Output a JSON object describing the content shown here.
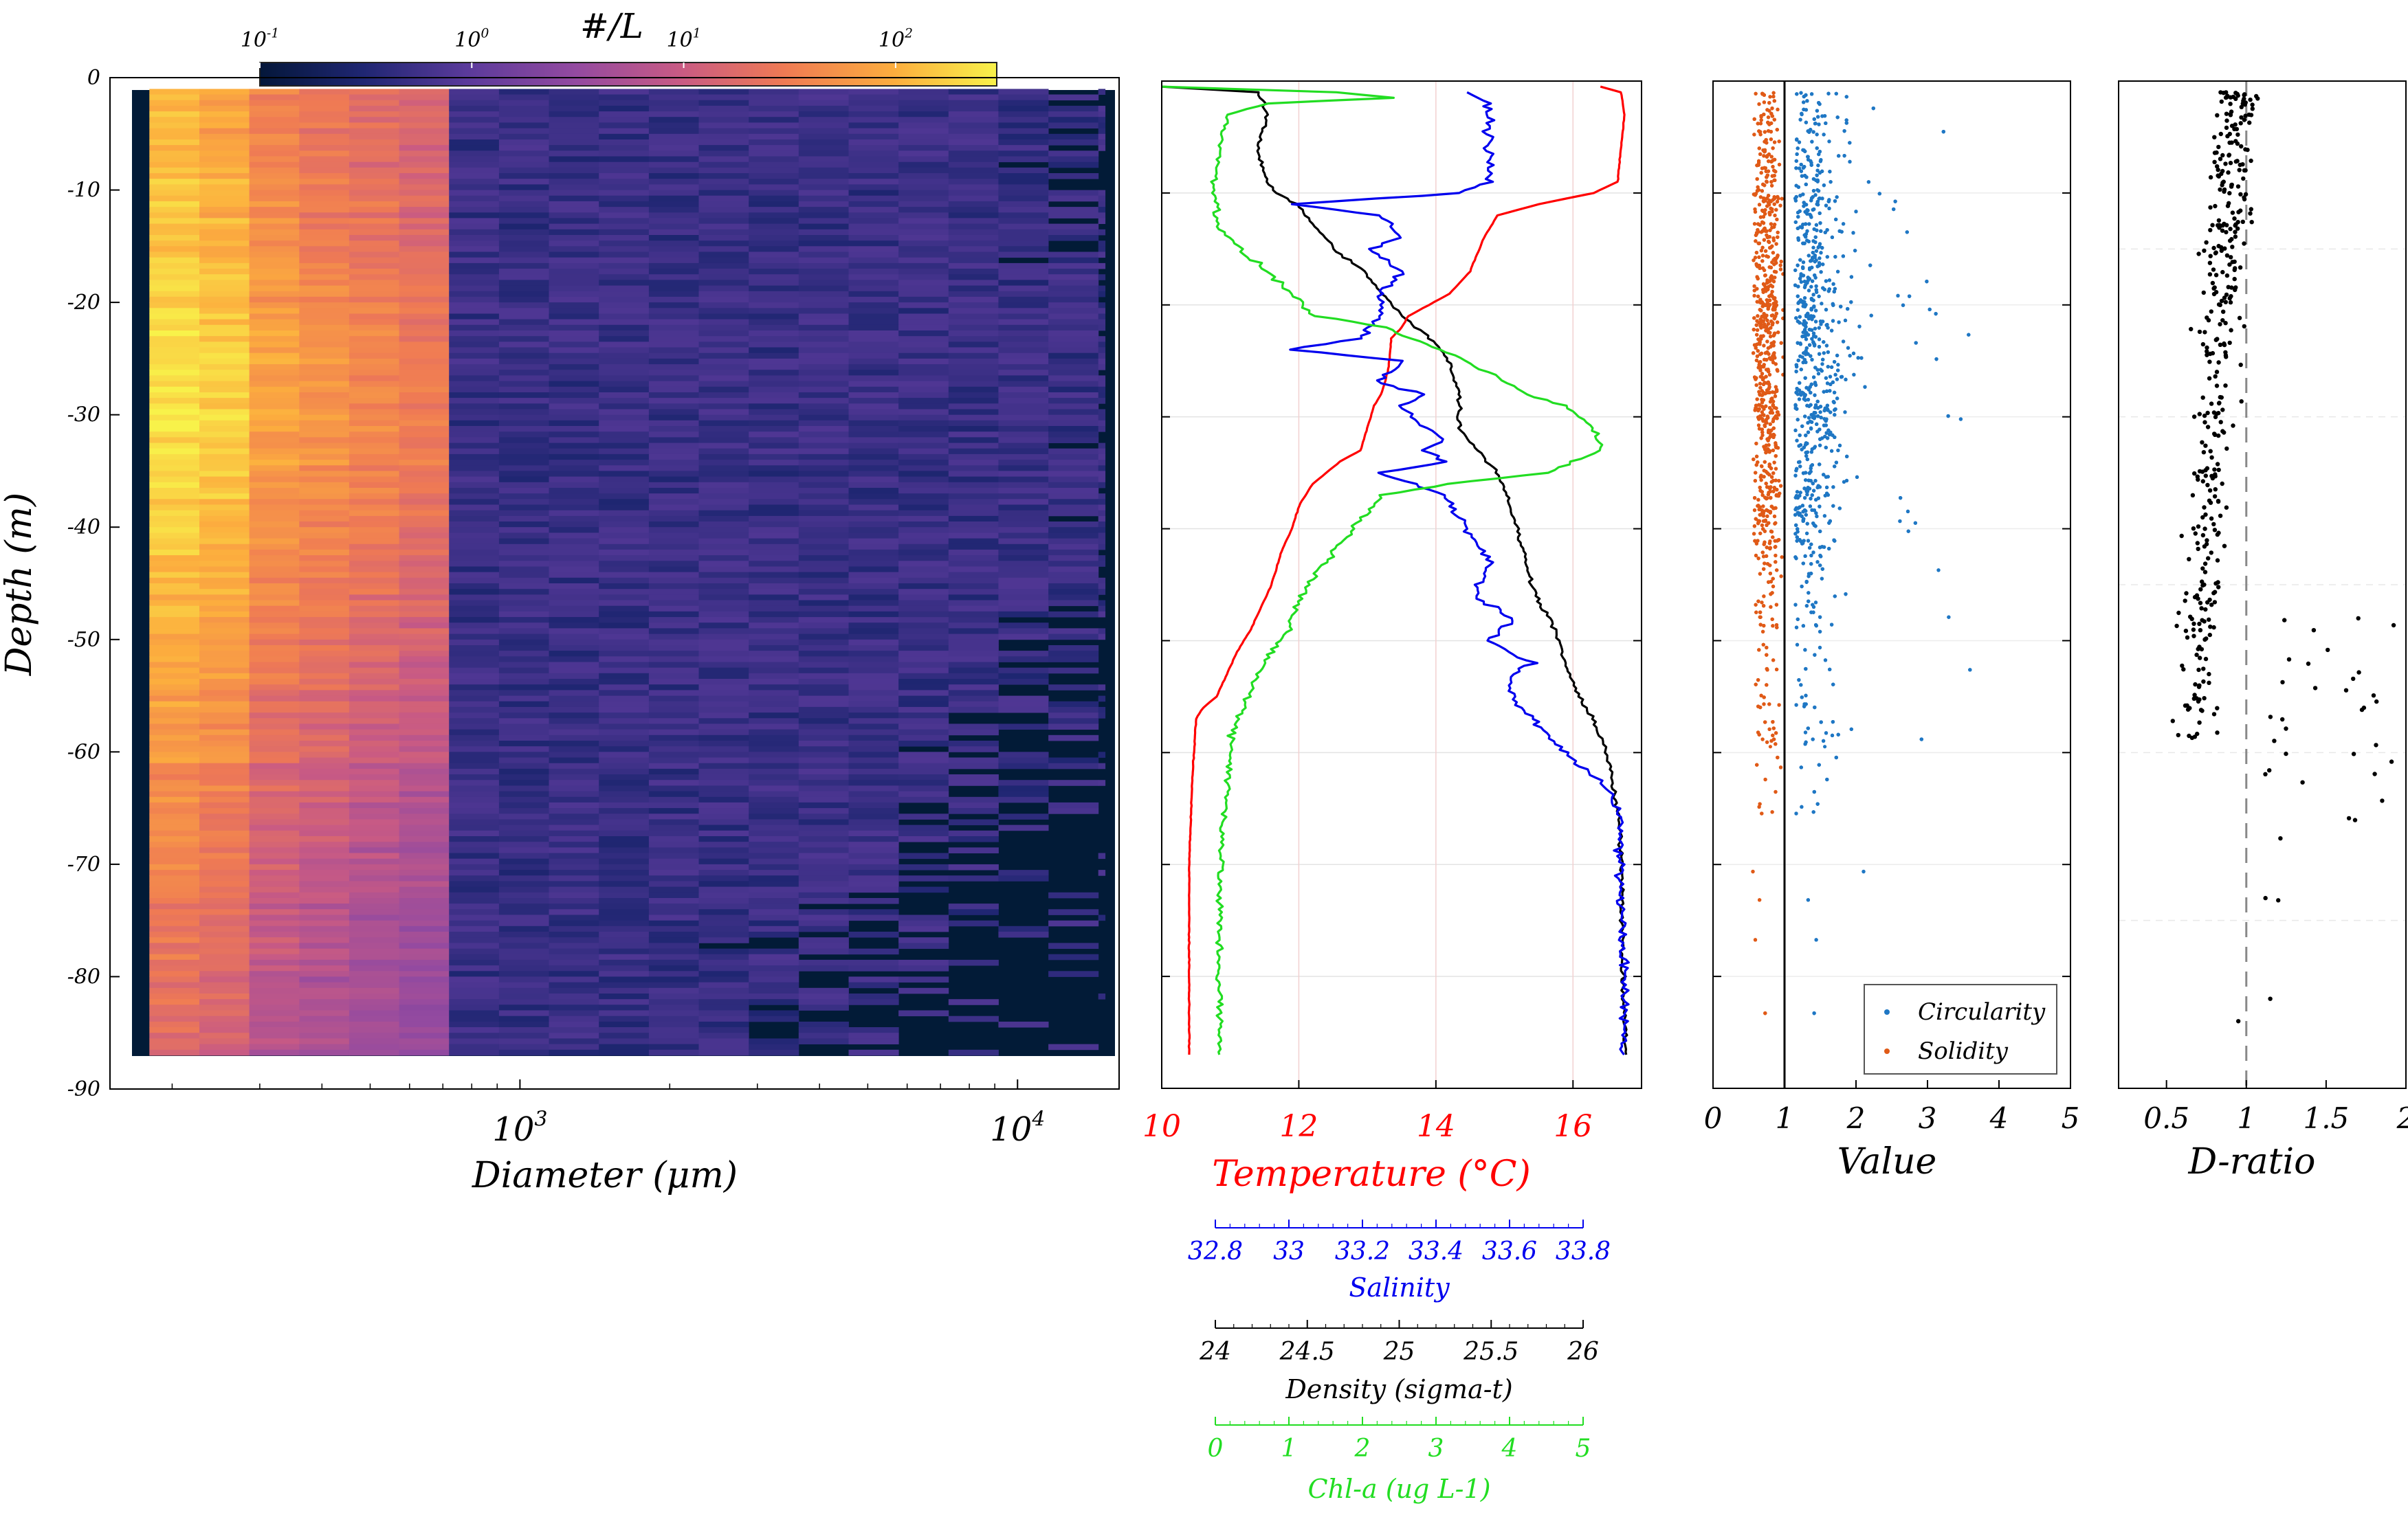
{
  "chart_data": [
    {
      "type": "heatmap",
      "colorbar": {
        "label": "#/L",
        "ticks": [
          {
            "base": "10",
            "exp": "-1"
          },
          {
            "base": "10",
            "exp": "0"
          },
          {
            "base": "10",
            "exp": "1"
          },
          {
            "base": "10",
            "exp": "2"
          }
        ],
        "range": [
          0.1,
          300
        ],
        "scale": "log",
        "colors": [
          "#04173a",
          "#1f2672",
          "#5a3a9b",
          "#944aa0",
          "#c85a84",
          "#ef7a54",
          "#fcad3e",
          "#f8f24a"
        ]
      },
      "xlabel": "Diameter (μm)",
      "ylabel": "Depth (m)",
      "xscale": "log",
      "xlim": [
        150,
        16000
      ],
      "ylim": [
        -90,
        0
      ],
      "x_ticks": [
        {
          "base": "10",
          "exp": "3"
        },
        {
          "base": "10",
          "exp": "4"
        }
      ],
      "y_ticks": [
        "0",
        "-10",
        "-20",
        "-30",
        "-40",
        "-50",
        "-60",
        "-70",
        "-80",
        "-90"
      ],
      "data_extent": {
        "x": [
          180,
          15000
        ],
        "y": [
          -87,
          -1
        ]
      },
      "background": "#021b37"
    },
    {
      "type": "line",
      "xlabel": "Temperature (°C)",
      "ylim": [
        -90,
        0
      ],
      "grid": true,
      "series": [
        {
          "name": "Temperature",
          "color": "#ff0000",
          "xlim": [
            10,
            17
          ],
          "ticks": [
            "10",
            "12",
            "14",
            "16"
          ],
          "points": [
            [
              16.4,
              -0.5
            ],
            [
              16.7,
              -1
            ],
            [
              16.75,
              -3
            ],
            [
              16.7,
              -6
            ],
            [
              16.65,
              -9
            ],
            [
              16.3,
              -10
            ],
            [
              15.5,
              -11
            ],
            [
              14.9,
              -12
            ],
            [
              14.7,
              -14
            ],
            [
              14.5,
              -17
            ],
            [
              14.2,
              -19
            ],
            [
              13.9,
              -20
            ],
            [
              13.6,
              -21
            ],
            [
              13.5,
              -22
            ],
            [
              13.35,
              -23
            ],
            [
              13.3,
              -26
            ],
            [
              13.2,
              -28
            ],
            [
              13.1,
              -29
            ],
            [
              13.0,
              -31
            ],
            [
              12.9,
              -33
            ],
            [
              12.6,
              -34
            ],
            [
              12.2,
              -36
            ],
            [
              12.0,
              -38
            ],
            [
              11.9,
              -40
            ],
            [
              11.75,
              -42
            ],
            [
              11.6,
              -45
            ],
            [
              11.45,
              -47
            ],
            [
              11.3,
              -49
            ],
            [
              11.1,
              -51
            ],
            [
              10.95,
              -53
            ],
            [
              10.8,
              -55
            ],
            [
              10.6,
              -56
            ],
            [
              10.5,
              -57
            ],
            [
              10.45,
              -62
            ],
            [
              10.4,
              -70
            ],
            [
              10.4,
              -80
            ],
            [
              10.4,
              -87
            ]
          ]
        },
        {
          "name": "Salinity",
          "color": "#0000ee",
          "xlabel": "Salinity",
          "xlim": [
            32.7,
            33.8
          ],
          "ticks": [
            "32.8",
            "33",
            "33.2",
            "33.4",
            "33.6",
            "33.8"
          ],
          "points": [
            [
              33.4,
              -1
            ],
            [
              33.45,
              -2
            ],
            [
              33.45,
              -6
            ],
            [
              33.45,
              -9
            ],
            [
              33.38,
              -10
            ],
            [
              33.2,
              -10.5
            ],
            [
              33.0,
              -11
            ],
            [
              33.2,
              -12
            ],
            [
              33.25,
              -14
            ],
            [
              33.18,
              -15
            ],
            [
              33.25,
              -17
            ],
            [
              33.2,
              -19
            ],
            [
              33.2,
              -21
            ],
            [
              33.15,
              -23
            ],
            [
              33.0,
              -24
            ],
            [
              33.25,
              -25
            ],
            [
              33.2,
              -27
            ],
            [
              33.3,
              -28
            ],
            [
              33.25,
              -29
            ],
            [
              33.3,
              -31
            ],
            [
              33.35,
              -32
            ],
            [
              33.3,
              -33
            ],
            [
              33.35,
              -34
            ],
            [
              33.2,
              -35
            ],
            [
              33.35,
              -37
            ],
            [
              33.4,
              -40
            ],
            [
              33.45,
              -43
            ],
            [
              33.42,
              -46
            ],
            [
              33.5,
              -48
            ],
            [
              33.45,
              -50
            ],
            [
              33.55,
              -52
            ],
            [
              33.5,
              -53
            ],
            [
              33.5,
              -55
            ],
            [
              33.55,
              -57
            ],
            [
              33.6,
              -59
            ],
            [
              33.65,
              -61
            ],
            [
              33.72,
              -63
            ],
            [
              33.75,
              -65
            ],
            [
              33.75,
              -70
            ],
            [
              33.76,
              -80
            ],
            [
              33.76,
              -87
            ]
          ]
        },
        {
          "name": "Density",
          "color": "#000000",
          "xlabel": "Density (sigma-t)",
          "xlim": [
            23.5,
            26
          ],
          "ticks": [
            "24",
            "24.5",
            "25",
            "25.5",
            "26"
          ],
          "points": [
            [
              23.5,
              -0.5
            ],
            [
              24.0,
              -1
            ],
            [
              24.05,
              -3
            ],
            [
              24.0,
              -6
            ],
            [
              24.05,
              -9
            ],
            [
              24.1,
              -10
            ],
            [
              24.2,
              -11
            ],
            [
              24.3,
              -13
            ],
            [
              24.4,
              -15
            ],
            [
              24.55,
              -17
            ],
            [
              24.65,
              -19
            ],
            [
              24.75,
              -21
            ],
            [
              24.9,
              -23
            ],
            [
              25.0,
              -25
            ],
            [
              25.05,
              -28
            ],
            [
              25.05,
              -31
            ],
            [
              25.15,
              -33
            ],
            [
              25.25,
              -35
            ],
            [
              25.3,
              -37
            ],
            [
              25.35,
              -40
            ],
            [
              25.4,
              -43
            ],
            [
              25.45,
              -46
            ],
            [
              25.55,
              -49
            ],
            [
              25.6,
              -52
            ],
            [
              25.65,
              -54
            ],
            [
              25.7,
              -56
            ],
            [
              25.75,
              -57
            ],
            [
              25.82,
              -60
            ],
            [
              25.85,
              -63
            ],
            [
              25.88,
              -66
            ],
            [
              25.9,
              -70
            ],
            [
              25.9,
              -80
            ],
            [
              25.92,
              -87
            ]
          ]
        },
        {
          "name": "Chl-a",
          "color": "#22dd22",
          "xlabel": "Chl-a (ug L-1)",
          "xlim": [
            0,
            5
          ],
          "ticks": [
            "0",
            "1",
            "2",
            "3",
            "4",
            "5"
          ],
          "points": [
            [
              0.0,
              -0.5
            ],
            [
              1.8,
              -1
            ],
            [
              2.4,
              -1.5
            ],
            [
              1.1,
              -2
            ],
            [
              0.7,
              -3
            ],
            [
              0.6,
              -6
            ],
            [
              0.55,
              -10
            ],
            [
              0.6,
              -13
            ],
            [
              0.8,
              -15
            ],
            [
              1.1,
              -17
            ],
            [
              1.35,
              -19
            ],
            [
              1.6,
              -21
            ],
            [
              2.3,
              -22
            ],
            [
              2.9,
              -24
            ],
            [
              3.4,
              -26
            ],
            [
              3.8,
              -28
            ],
            [
              4.2,
              -29
            ],
            [
              4.5,
              -31
            ],
            [
              4.6,
              -33
            ],
            [
              4.0,
              -35
            ],
            [
              3.0,
              -36
            ],
            [
              2.3,
              -37
            ],
            [
              2.1,
              -39
            ],
            [
              1.9,
              -41
            ],
            [
              1.7,
              -43
            ],
            [
              1.55,
              -45
            ],
            [
              1.4,
              -47
            ],
            [
              1.3,
              -49
            ],
            [
              1.15,
              -51
            ],
            [
              1.0,
              -53
            ],
            [
              0.85,
              -56
            ],
            [
              0.75,
              -58
            ],
            [
              0.7,
              -62
            ],
            [
              0.65,
              -66
            ],
            [
              0.6,
              -72
            ],
            [
              0.6,
              -80
            ],
            [
              0.6,
              -87
            ]
          ]
        }
      ]
    },
    {
      "type": "scatter",
      "xlabel": "Value",
      "xlim": [
        0,
        5
      ],
      "ylim": [
        -90,
        0
      ],
      "x_ticks": [
        "0",
        "1",
        "2",
        "3",
        "4",
        "5"
      ],
      "reference_line_x": 1,
      "legend": "bottom-right",
      "series": [
        {
          "name": "Circularity",
          "color": "#1f77c4"
        },
        {
          "name": "Solidity",
          "color": "#e05a17"
        }
      ]
    },
    {
      "type": "scatter",
      "xlabel": "D-ratio",
      "xlim": [
        0.2,
        2
      ],
      "ylim": [
        -90,
        0
      ],
      "x_ticks": [
        "0.5",
        "1",
        "1.5",
        "2"
      ],
      "reference_line_x": 1,
      "series": [
        {
          "name": "",
          "color": "#000000"
        }
      ]
    }
  ]
}
